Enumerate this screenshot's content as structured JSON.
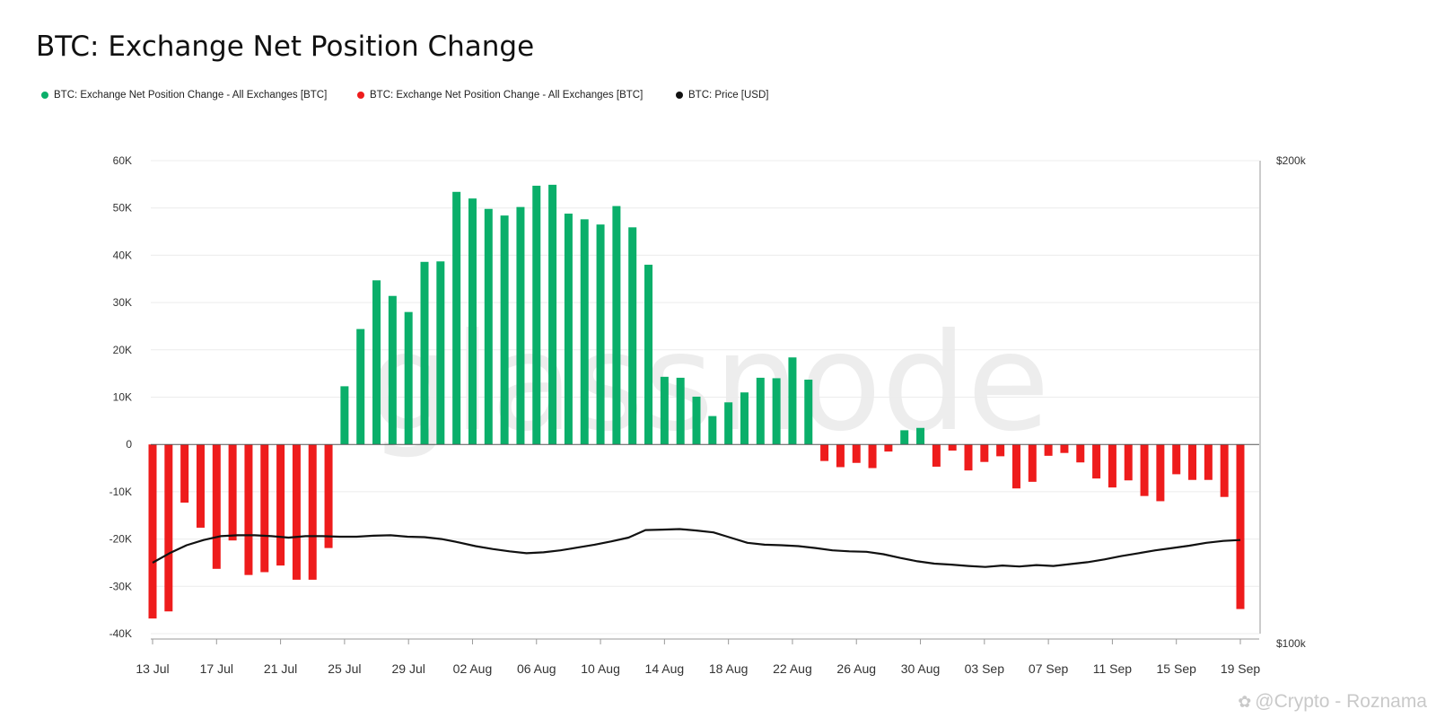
{
  "chart_data": {
    "type": "bar",
    "title": "BTC: Exchange Net Position Change",
    "series": [
      {
        "name": "BTC: Exchange Net Position Change - All Exchanges [BTC]",
        "color": "#0aaf6a"
      },
      {
        "name": "BTC: Exchange Net Position Change - All Exchanges [BTC]",
        "color": "#ee1c1c"
      },
      {
        "name": "BTC: Price [USD]",
        "color": "#111111"
      }
    ],
    "x_dates": [
      "13 Jul",
      "14 Jul",
      "15 Jul",
      "16 Jul",
      "17 Jul",
      "18 Jul",
      "19 Jul",
      "20 Jul",
      "21 Jul",
      "22 Jul",
      "23 Jul",
      "24 Jul",
      "25 Jul",
      "26 Jul",
      "27 Jul",
      "28 Jul",
      "29 Jul",
      "30 Jul",
      "31 Jul",
      "01 Aug",
      "02 Aug",
      "03 Aug",
      "04 Aug",
      "05 Aug",
      "06 Aug",
      "07 Aug",
      "08 Aug",
      "09 Aug",
      "10 Aug",
      "11 Aug",
      "12 Aug",
      "13 Aug",
      "14 Aug",
      "15 Aug",
      "16 Aug",
      "17 Aug",
      "18 Aug",
      "19 Aug",
      "20 Aug",
      "21 Aug",
      "22 Aug",
      "23 Aug",
      "24 Aug",
      "25 Aug",
      "26 Aug",
      "27 Aug",
      "28 Aug",
      "29 Aug",
      "30 Aug",
      "31 Aug",
      "01 Sep",
      "02 Sep",
      "03 Sep",
      "04 Sep",
      "05 Sep",
      "06 Sep",
      "07 Sep",
      "08 Sep",
      "09 Sep",
      "10 Sep",
      "11 Sep",
      "12 Sep",
      "13 Sep",
      "14 Sep",
      "15 Sep",
      "16 Sep",
      "17 Sep",
      "18 Sep",
      "19 Sep"
    ],
    "net_position_btc": [
      -36800,
      -35300,
      -12300,
      -17600,
      -26300,
      -20300,
      -27600,
      -27000,
      -25600,
      -28600,
      -28600,
      -21900,
      12300,
      24400,
      34700,
      31400,
      28000,
      38600,
      38700,
      53400,
      52000,
      49800,
      48400,
      50200,
      54700,
      54900,
      48800,
      47600,
      46500,
      50400,
      45900,
      38000,
      14300,
      14100,
      10100,
      6000,
      8900,
      11000,
      14100,
      14000,
      18400,
      13700,
      -3500,
      -4800,
      -3900,
      -5000,
      -1500,
      3000,
      3500,
      -4700,
      -1300,
      -5500,
      -3700,
      -2500,
      -9300,
      -7900,
      -2400,
      -1800,
      -3800,
      -7200,
      -9100,
      -7600,
      -10900,
      -12000,
      -6300,
      -7500,
      -7500,
      -11100,
      -34800
    ],
    "price_usd": [
      115000,
      117000,
      118700,
      119800,
      120600,
      120800,
      120800,
      120600,
      120300,
      120600,
      120600,
      120500,
      120500,
      120700,
      120800,
      120500,
      120400,
      120000,
      119300,
      118500,
      117900,
      117400,
      117000,
      117200,
      117600,
      118200,
      118800,
      119500,
      120300,
      121900,
      122000,
      122100,
      121800,
      121400,
      120300,
      119200,
      118800,
      118700,
      118500,
      118100,
      117600,
      117400,
      117300,
      116800,
      116000,
      115300,
      114800,
      114600,
      114300,
      114100,
      114400,
      114200,
      114500,
      114300,
      114700,
      115100,
      115700,
      116400,
      117000,
      117600,
      118100,
      118600,
      119200,
      119600,
      119800
    ],
    "price_x_index": [
      0,
      1,
      2,
      3,
      4,
      5,
      6,
      7,
      8,
      9,
      10,
      11,
      12,
      13,
      14,
      15,
      16,
      17,
      18,
      19,
      20,
      21,
      22,
      23,
      24,
      25,
      26,
      27,
      28,
      29,
      30,
      31,
      32,
      33,
      34,
      35,
      36,
      37,
      38,
      39,
      40,
      41,
      42,
      43,
      44,
      45,
      46,
      47,
      48,
      49,
      50,
      51,
      52,
      53,
      54,
      55,
      56,
      57,
      58,
      59,
      60,
      61,
      62,
      63,
      64
    ],
    "x_tick_labels": [
      "13 Jul",
      "17 Jul",
      "21 Jul",
      "25 Jul",
      "29 Jul",
      "02 Aug",
      "06 Aug",
      "10 Aug",
      "14 Aug",
      "18 Aug",
      "22 Aug",
      "26 Aug",
      "30 Aug",
      "03 Sep",
      "07 Sep",
      "11 Sep",
      "15 Sep",
      "19 Sep"
    ],
    "y_left_ticks": [
      60000,
      50000,
      40000,
      30000,
      20000,
      10000,
      0,
      -10000,
      -20000,
      -30000,
      -40000
    ],
    "y_left_tick_labels": [
      "60K",
      "50K",
      "40K",
      "30K",
      "20K",
      "10K",
      "0",
      "-10K",
      "-20K",
      "-30K",
      "-40K"
    ],
    "y_left_range": [
      -40000,
      60000
    ],
    "y_right_range": [
      100000,
      200000
    ],
    "y_right_tick_labels": [
      "$200k",
      "$100k"
    ],
    "grid": "horizontal",
    "legend_position": "top-left"
  },
  "watermark": {
    "icon": "binance-square-icon",
    "text": "@Crypto - Roznama",
    "logo_text": "glassnode"
  }
}
